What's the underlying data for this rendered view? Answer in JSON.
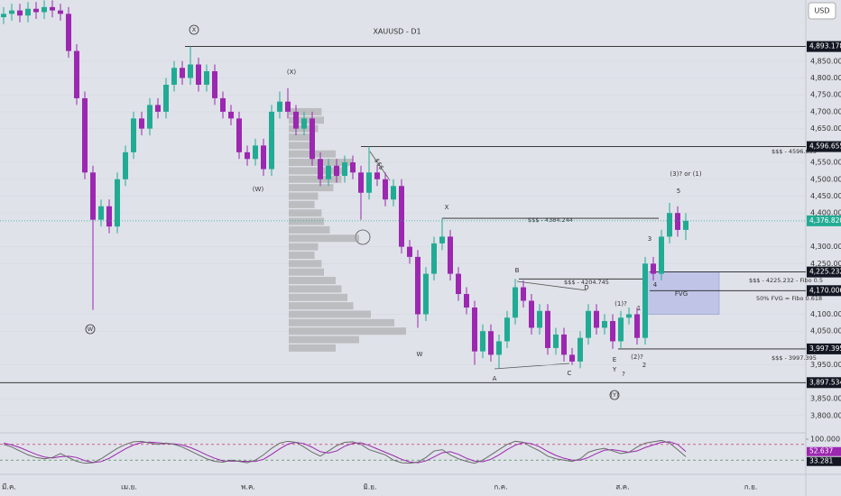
{
  "chart_data": {
    "type": "candlestick",
    "title": "XAUUSD - D1",
    "currency": "USD",
    "ylim": [
      3754,
      5031
    ],
    "yticks": [
      {
        "value": 4850,
        "label": "4,850.000"
      },
      {
        "value": 4800,
        "label": "4,800.000"
      },
      {
        "value": 4750,
        "label": "4,750.000"
      },
      {
        "value": 4700,
        "label": "4,700.000"
      },
      {
        "value": 4650,
        "label": "4,650.000"
      },
      {
        "value": 4550,
        "label": "4,550.000"
      },
      {
        "value": 4500,
        "label": "4,500.000"
      },
      {
        "value": 4450,
        "label": "4,450.000"
      },
      {
        "value": 4400,
        "label": "4,400.000"
      },
      {
        "value": 4300,
        "label": "4,300.000"
      },
      {
        "value": 4250,
        "label": "4,250.000"
      },
      {
        "value": 4100,
        "label": "4,100.000"
      },
      {
        "value": 4050,
        "label": "4,050.000"
      },
      {
        "value": 3950,
        "label": "3,950.000"
      },
      {
        "value": 3850,
        "label": "3,850.000"
      },
      {
        "value": 3800,
        "label": "3,800.000"
      }
    ],
    "up_color": "#22ab94",
    "down_color": "#9c27b0",
    "candles": [
      [
        4980,
        5010,
        4960,
        4990
      ],
      [
        4990,
        5020,
        4970,
        5000
      ],
      [
        5000,
        5020,
        4965,
        4985
      ],
      [
        4985,
        5025,
        4965,
        5005
      ],
      [
        5005,
        5025,
        4975,
        4995
      ],
      [
        4995,
        5030,
        4975,
        5010
      ],
      [
        5010,
        5030,
        4980,
        5000
      ],
      [
        5000,
        5020,
        4970,
        4990
      ],
      [
        4990,
        5010,
        4860,
        4880
      ],
      [
        4880,
        4900,
        4720,
        4740
      ],
      [
        4740,
        4760,
        4500,
        4520
      ],
      [
        4520,
        4540,
        4113,
        4380
      ],
      [
        4380,
        4440,
        4360,
        4420
      ],
      [
        4420,
        4440,
        4340,
        4360
      ],
      [
        4360,
        4520,
        4340,
        4500
      ],
      [
        4500,
        4600,
        4480,
        4580
      ],
      [
        4580,
        4700,
        4560,
        4680
      ],
      [
        4680,
        4700,
        4630,
        4650
      ],
      [
        4650,
        4740,
        4630,
        4720
      ],
      [
        4720,
        4740,
        4680,
        4700
      ],
      [
        4700,
        4800,
        4680,
        4780
      ],
      [
        4780,
        4850,
        4760,
        4830
      ],
      [
        4830,
        4850,
        4780,
        4800
      ],
      [
        4800,
        4893.178,
        4780,
        4840
      ],
      [
        4840,
        4860,
        4760,
        4780
      ],
      [
        4780,
        4840,
        4760,
        4820
      ],
      [
        4820,
        4840,
        4720,
        4740
      ],
      [
        4740,
        4760,
        4680,
        4700
      ],
      [
        4700,
        4720,
        4660,
        4680
      ],
      [
        4680,
        4700,
        4560,
        4580
      ],
      [
        4580,
        4600,
        4540,
        4560
      ],
      [
        4560,
        4620,
        4540,
        4600
      ],
      [
        4600,
        4620,
        4510,
        4530
      ],
      [
        4530,
        4720,
        4510,
        4700
      ],
      [
        4700,
        4760,
        4680,
        4730
      ],
      [
        4730,
        4770,
        4680,
        4700
      ],
      [
        4700,
        4720,
        4630,
        4650
      ],
      [
        4650,
        4700,
        4630,
        4680
      ],
      [
        4680,
        4700,
        4540,
        4560
      ],
      [
        4560,
        4580,
        4480,
        4500
      ],
      [
        4500,
        4560,
        4480,
        4540
      ],
      [
        4540,
        4560,
        4490,
        4510
      ],
      [
        4510,
        4570,
        4490,
        4550
      ],
      [
        4550,
        4570,
        4500,
        4520
      ],
      [
        4520,
        4540,
        4380,
        4460
      ],
      [
        4460,
        4596.655,
        4440,
        4520
      ],
      [
        4520,
        4540,
        4480,
        4500
      ],
      [
        4500,
        4520,
        4420,
        4440
      ],
      [
        4440,
        4500,
        4420,
        4480
      ],
      [
        4480,
        4500,
        4280,
        4300
      ],
      [
        4300,
        4320,
        4250,
        4270
      ],
      [
        4270,
        4290,
        4060,
        4100
      ],
      [
        4100,
        4240,
        4080,
        4220
      ],
      [
        4220,
        4330,
        4200,
        4310
      ],
      [
        4310,
        4384.244,
        4290,
        4330
      ],
      [
        4330,
        4350,
        4200,
        4220
      ],
      [
        4220,
        4240,
        4140,
        4160
      ],
      [
        4160,
        4180,
        4100,
        4120
      ],
      [
        4120,
        4140,
        3950,
        3990
      ],
      [
        3990,
        4070,
        3970,
        4050
      ],
      [
        4050,
        4070,
        3960,
        3980
      ],
      [
        3980,
        4040,
        3940,
        4020
      ],
      [
        4020,
        4110,
        4000,
        4090
      ],
      [
        4090,
        4204.745,
        4070,
        4180
      ],
      [
        4180,
        4200,
        4120,
        4140
      ],
      [
        4140,
        4160,
        4040,
        4060
      ],
      [
        4060,
        4130,
        4040,
        4110
      ],
      [
        4110,
        4130,
        3980,
        4000
      ],
      [
        4000,
        4060,
        3980,
        4040
      ],
      [
        4040,
        4060,
        3960,
        3980
      ],
      [
        3980,
        4000,
        3950,
        3960
      ],
      [
        3960,
        4050,
        3940,
        4030
      ],
      [
        4030,
        4130,
        4010,
        4110
      ],
      [
        4110,
        4130,
        4040,
        4060
      ],
      [
        4060,
        4100,
        4040,
        4080
      ],
      [
        4080,
        4100,
        3997.395,
        4020
      ],
      [
        4020,
        4110,
        4000,
        4090
      ],
      [
        4090,
        4120,
        4070,
        4100
      ],
      [
        4100,
        4120,
        4010,
        4030
      ],
      [
        4030,
        4270,
        4010,
        4250
      ],
      [
        4250,
        4270,
        4200,
        4220
      ],
      [
        4220,
        4350,
        4200,
        4330
      ],
      [
        4330,
        4430,
        4310,
        4400
      ],
      [
        4400,
        4420,
        4330,
        4350
      ],
      [
        4350,
        4400,
        4320,
        4376.82
      ]
    ],
    "last_price": {
      "value": 4376.82,
      "label": "4,376.820"
    },
    "levels": [
      {
        "value": 4893.178,
        "label": "4,893.178"
      },
      {
        "value": 4596.655,
        "label": "4,596.655",
        "note": "$$$ - 4596.655"
      },
      {
        "value": 4384.244,
        "note": "$$$ - 4384.244"
      },
      {
        "value": 4225.232,
        "label": "4,225.232",
        "note": "$$$ - 4225.232 - Fibo 0.5"
      },
      {
        "value": 4204.745,
        "note": "$$$ - 4204.745"
      },
      {
        "value": 4170.006,
        "label": "4,170.006",
        "note": "50% FVG = Fibo 0.618"
      },
      {
        "value": 3997.395,
        "label": "3,997.395",
        "note": "$$$ - 3997.395"
      },
      {
        "value": 3897.534,
        "label": "3,897.534"
      }
    ],
    "fvg": [
      4100,
      4225.232
    ],
    "volume_profile": {
      "prices": [
        4000,
        4025,
        4050,
        4075,
        4100,
        4125,
        4150,
        4175,
        4200,
        4225,
        4250,
        4275,
        4300,
        4325,
        4350,
        4375,
        4400,
        4425,
        4450,
        4475,
        4500,
        4525,
        4550,
        4575,
        4600,
        4625,
        4650,
        4675,
        4700
      ],
      "values": [
        40,
        60,
        100,
        90,
        70,
        55,
        50,
        45,
        40,
        30,
        28,
        22,
        25,
        60,
        35,
        30,
        28,
        22,
        25,
        38,
        45,
        50,
        55,
        40,
        20,
        18,
        25,
        30,
        28
      ]
    },
    "annotations": [
      "X",
      "(X)",
      "(W)",
      "W",
      "W",
      "X",
      "A",
      "B",
      "C",
      "D",
      "E",
      "Y",
      "(Y)",
      "?",
      "(1)?",
      "1",
      "2",
      "(2)?",
      "3",
      "4",
      "5",
      "(3)? or (1)",
      "FVG",
      "$$$"
    ],
    "x_labels": [
      "มี.ค.",
      "เม.ย.",
      "พ.ค.",
      "มิ.ย.",
      "ก.ค.",
      "ส.ค.",
      "ก.ย."
    ],
    "oscillator": {
      "ylim": [
        0,
        100
      ],
      "yticks": [
        {
          "value": 100,
          "label": "100.000"
        }
      ],
      "bands": [
        80,
        20
      ],
      "series": [
        {
          "color": "#9c27b0",
          "values": [
            85,
            78,
            68,
            55,
            42,
            32,
            28,
            33,
            35,
            30,
            18,
            11,
            14,
            27,
            45,
            63,
            78,
            87,
            89,
            86,
            83,
            82,
            78,
            68,
            55,
            40,
            27,
            17,
            16,
            16,
            15,
            15,
            23,
            42,
            63,
            81,
            88,
            83,
            69,
            52,
            47,
            55,
            73,
            84,
            86,
            76,
            63,
            50,
            37,
            23,
            13,
            10,
            17,
            32,
            48,
            52,
            42,
            27,
            16,
            14,
            23,
            40,
            60,
            77,
            87,
            83,
            71,
            53,
            38,
            27,
            20,
            20,
            30,
            45,
            58,
            60,
            55,
            50,
            55,
            68,
            78,
            88,
            90,
            80,
            52.637
          ]
        },
        {
          "color": "#6b6b6b",
          "values": [
            80,
            70,
            55,
            40,
            30,
            25,
            30,
            45,
            30,
            15,
            8,
            10,
            25,
            45,
            65,
            80,
            90,
            92,
            85,
            80,
            85,
            80,
            70,
            55,
            40,
            25,
            15,
            12,
            20,
            15,
            10,
            20,
            40,
            65,
            85,
            92,
            88,
            70,
            50,
            35,
            55,
            75,
            88,
            90,
            80,
            60,
            50,
            40,
            20,
            10,
            8,
            12,
            30,
            55,
            60,
            40,
            25,
            15,
            8,
            20,
            40,
            60,
            80,
            92,
            88,
            70,
            55,
            35,
            25,
            20,
            15,
            25,
            50,
            60,
            65,
            55,
            45,
            50,
            70,
            85,
            90,
            95,
            85,
            60,
            33.281
          ]
        }
      ]
    }
  }
}
